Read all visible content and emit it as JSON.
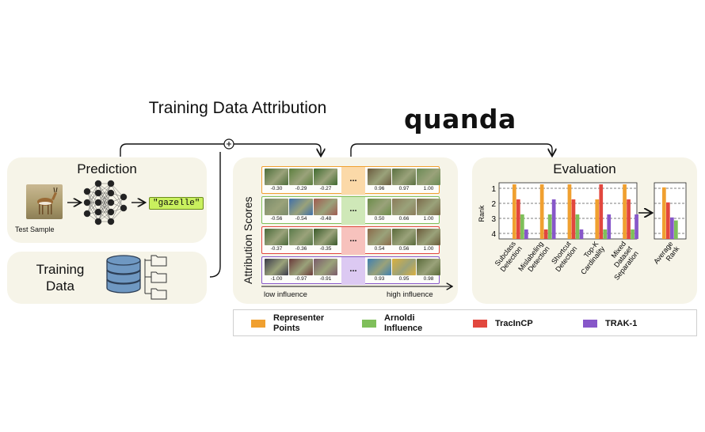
{
  "title": "Training Data Attribution",
  "logo": "quanda",
  "prediction": {
    "title": "Prediction",
    "test_caption": "Test Sample",
    "predicted_label": "\"gazelle\""
  },
  "training": {
    "title": "Training Data"
  },
  "attribution": {
    "ylabel": "Attribution Scores",
    "low_label": "low influence",
    "high_label": "high influence",
    "ellipsis": "...",
    "rows": [
      {
        "color": "#f0a030",
        "scores": [
          "-0.30",
          "-0.29",
          "-0.27",
          "0.96",
          "0.97",
          "1.00"
        ]
      },
      {
        "color": "#7fbf5a",
        "scores": [
          "-0.56",
          "-0.54",
          "-0.48",
          "0.50",
          "0.66",
          "1.00"
        ]
      },
      {
        "color": "#e2473e",
        "scores": [
          "-0.37",
          "-0.36",
          "-0.35",
          "0.54",
          "0.56",
          "1.00"
        ]
      },
      {
        "color": "#8757c9",
        "scores": [
          "-1.00",
          "-0.97",
          "-0.91",
          "0.93",
          "0.95",
          "0.98"
        ]
      }
    ]
  },
  "evaluation": {
    "title": "Evaluation",
    "chart_data": [
      {
        "type": "bar",
        "ylabel": "Rank",
        "y_ticks": [
          "1",
          "2",
          "3",
          "4"
        ],
        "ylim": [
          4.5,
          1
        ],
        "categories": [
          "Subclass Detection",
          "Mislabeling Detection",
          "Shortcut Detection",
          "Top-K Cardinality",
          "Mixed Dataset Separation"
        ],
        "series": [
          {
            "name": "Representer Points",
            "color": "#f0a030",
            "values": [
              1,
              1,
              1,
              2,
              1
            ]
          },
          {
            "name": "TracInCP",
            "color": "#e2473e",
            "values": [
              2,
              4,
              2,
              1,
              2
            ]
          },
          {
            "name": "Arnoldi Influence",
            "color": "#7fbf5a",
            "values": [
              3,
              3,
              3,
              4,
              4
            ]
          },
          {
            "name": "TRAK-1",
            "color": "#8757c9",
            "values": [
              4,
              2,
              4,
              3,
              3
            ]
          }
        ]
      },
      {
        "type": "bar",
        "categories": [
          "Average Rank"
        ],
        "series": [
          {
            "name": "Representer Points",
            "color": "#f0a030",
            "values": [
              1.2
            ]
          },
          {
            "name": "TracInCP",
            "color": "#e2473e",
            "values": [
              2.2
            ]
          },
          {
            "name": "TRAK-1",
            "color": "#8757c9",
            "values": [
              3.2
            ]
          },
          {
            "name": "Arnoldi Influence",
            "color": "#7fbf5a",
            "values": [
              3.4
            ]
          }
        ]
      }
    ]
  },
  "legend": [
    {
      "label": "Representer Points",
      "color": "#f0a030"
    },
    {
      "label": "Arnoldi Influence",
      "color": "#7fbf5a"
    },
    {
      "label": "TracInCP",
      "color": "#e2473e"
    },
    {
      "label": "TRAK-1",
      "color": "#8757c9"
    }
  ]
}
